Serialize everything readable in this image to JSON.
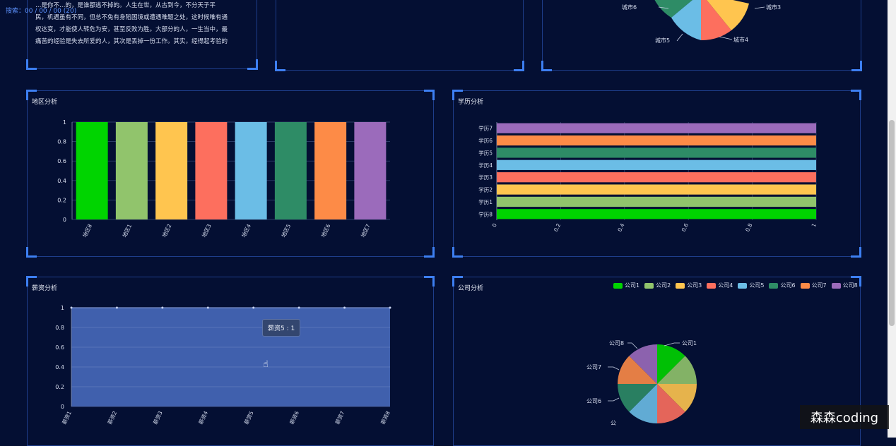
{
  "search": {
    "text": "搜索：00 / 00 / 00 (20)"
  },
  "intro_text": {
    "lines": [
      "…是你不…的，是谁都逃不掉的。人生在世，从古到今，不分天子平",
      "民，机遇虽有不同，但总不免有身陷困境或遭遇难题之处，这时候唯有通",
      "权达变，才能使人转危为安，甚至反败为胜。大部分的人，一生当中，最",
      "痛苦的经验是失去所爱的人，其次是丢掉一份工作。其实，经得起考验的"
    ]
  },
  "top_pie": {
    "labels": {
      "c3": "城市3",
      "c4": "城市4",
      "c5": "城市5",
      "c6": "城市6"
    }
  },
  "colors": {
    "palette": [
      "#00d400",
      "#91c46c",
      "#ffc54f",
      "#fd6f5e",
      "#6bbde6",
      "#2e8c66",
      "#fd8b47",
      "#9b6bbb"
    ],
    "accent": "#3d7ff2",
    "border": "#1e3d8a"
  },
  "region_chart": {
    "title": "地区分析",
    "chart_data": {
      "type": "bar",
      "categories": [
        "地区8",
        "地区1",
        "地区2",
        "地区3",
        "地区4",
        "地区5",
        "地区6",
        "地区7"
      ],
      "values": [
        1,
        1,
        1,
        1,
        1,
        1,
        1,
        1
      ],
      "ylim": [
        0,
        1
      ],
      "yticks": [
        "0",
        "0.2",
        "0.4",
        "0.6",
        "0.8",
        "1"
      ]
    }
  },
  "edu_chart": {
    "title": "学历分析",
    "chart_data": {
      "type": "bar",
      "orientation": "horizontal",
      "categories": [
        "学历8",
        "学历1",
        "学历2",
        "学历3",
        "学历4",
        "学历5",
        "学历6",
        "学历7"
      ],
      "values": [
        1,
        1,
        1,
        1,
        1,
        1,
        1,
        1
      ],
      "xlim": [
        0,
        1
      ],
      "xticks": [
        "0",
        "0.2",
        "0.4",
        "0.6",
        "0.8",
        "1"
      ]
    }
  },
  "salary_chart": {
    "title": "薪资分析",
    "tooltip": "薪资5 : 1",
    "chart_data": {
      "type": "area",
      "categories": [
        "薪资1",
        "薪资2",
        "薪资3",
        "薪资4",
        "薪资5",
        "薪资6",
        "薪资7",
        "薪资8"
      ],
      "values": [
        1,
        1,
        1,
        1,
        1,
        1,
        1,
        1
      ],
      "ylim": [
        0,
        1
      ],
      "yticks": [
        "0",
        "0.2",
        "0.4",
        "0.6",
        "0.8",
        "1"
      ]
    }
  },
  "company_chart": {
    "title": "公司分析",
    "legend": [
      "公司1",
      "公司2",
      "公司3",
      "公司4",
      "公司5",
      "公司6",
      "公司7",
      "公司8"
    ],
    "chart_data": {
      "type": "pie",
      "labels": [
        "公司1",
        "公司2",
        "公司3",
        "公司4",
        "公司5",
        "公司6",
        "公司7",
        "公司8"
      ],
      "values": [
        1,
        1,
        1,
        1,
        1,
        1,
        1,
        1
      ]
    },
    "visible_labels": {
      "c1": "公司1",
      "c6": "公司6",
      "c7": "公司7",
      "c8": "公司8",
      "c5": "公"
    }
  },
  "watermark": "森森coding"
}
